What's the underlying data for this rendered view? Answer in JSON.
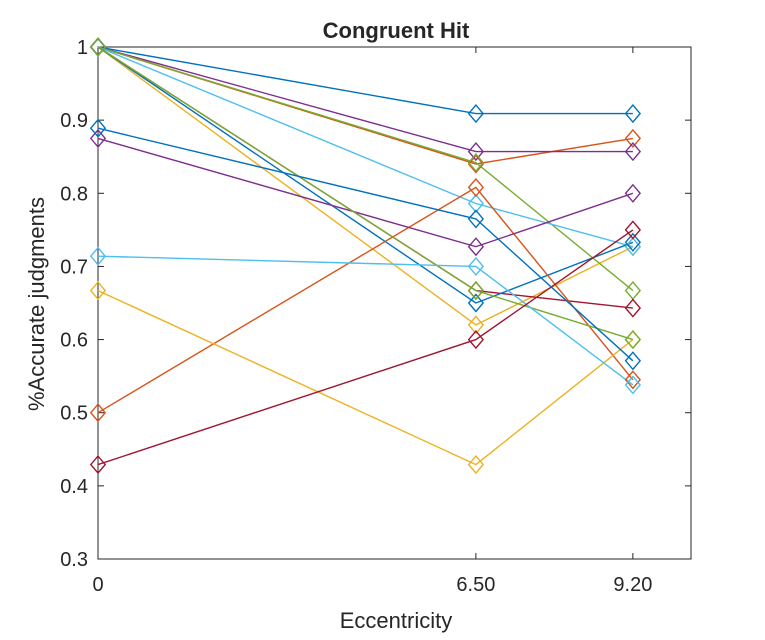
{
  "chart_data": {
    "type": "line",
    "title": "Congruent Hit",
    "xlabel": "Eccentricity",
    "ylabel": "%Accurate judgments",
    "x": [
      0,
      6.5,
      9.2
    ],
    "x_tick_labels": [
      "0",
      "6.50",
      "9.20"
    ],
    "y_ticks": [
      0.3,
      0.4,
      0.5,
      0.6,
      0.7,
      0.8,
      0.9,
      1
    ],
    "y_tick_labels": [
      "0.3",
      "0.4",
      "0.5",
      "0.6",
      "0.7",
      "0.8",
      "0.9",
      "1"
    ],
    "xlim": [
      0,
      10.2
    ],
    "ylim": [
      0.3,
      1.0
    ],
    "grid": false,
    "marker": "diamond",
    "series": [
      {
        "color": "#0072BD",
        "values": [
          1.0,
          0.909,
          0.909
        ]
      },
      {
        "color": "#D95319",
        "values": [
          1.0,
          0.84,
          0.875
        ]
      },
      {
        "color": "#EDB120",
        "values": [
          1.0,
          0.62,
          0.727
        ]
      },
      {
        "color": "#7E2F8E",
        "values": [
          1.0,
          0.857,
          0.857
        ]
      },
      {
        "color": "#77AC30",
        "values": [
          1.0,
          0.842,
          0.667
        ]
      },
      {
        "color": "#4DBEEE",
        "values": [
          1.0,
          0.786,
          0.727
        ]
      },
      {
        "color": "#A2142F",
        "values": [
          1.0,
          0.667,
          0.643
        ]
      },
      {
        "color": "#0072BD",
        "values": [
          1.0,
          0.65,
          0.733
        ]
      },
      {
        "color": "#D95319",
        "values": [
          0.5,
          0.808,
          0.545
        ]
      },
      {
        "color": "#EDB120",
        "values": [
          0.667,
          0.429,
          0.6
        ]
      },
      {
        "color": "#7E2F8E",
        "values": [
          0.875,
          0.727,
          0.8
        ]
      },
      {
        "color": "#77AC30",
        "values": [
          1.0,
          0.667,
          0.6
        ]
      },
      {
        "color": "#4DBEEE",
        "values": [
          0.714,
          0.7,
          0.538
        ]
      },
      {
        "color": "#A2142F",
        "values": [
          0.429,
          0.6,
          0.75
        ]
      },
      {
        "color": "#0072BD",
        "values": [
          0.889,
          0.765,
          0.571
        ]
      }
    ]
  }
}
